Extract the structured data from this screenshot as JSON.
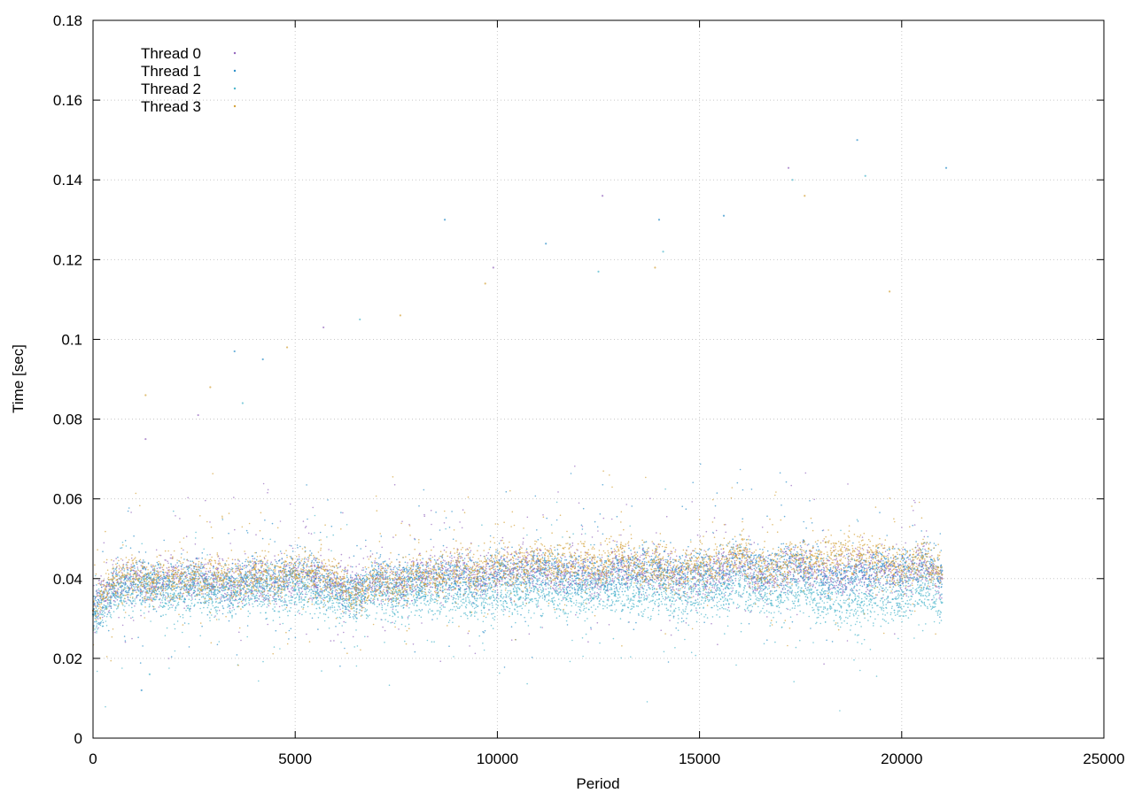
{
  "chart_data": {
    "type": "scatter",
    "title": "",
    "xlabel": "Period",
    "ylabel": "Time [sec]",
    "xlim": [
      0,
      25000
    ],
    "ylim": [
      0,
      0.18
    ],
    "x_ticks": [
      0,
      5000,
      10000,
      15000,
      20000,
      25000
    ],
    "x_tick_labels": [
      "0",
      "5000",
      "10000",
      "15000",
      "20000",
      "25000"
    ],
    "y_ticks": [
      0,
      0.02,
      0.04,
      0.06,
      0.08,
      0.1,
      0.12,
      0.14,
      0.16,
      0.18
    ],
    "y_tick_labels": [
      "0",
      "0.02",
      "0.04",
      "0.06",
      "0.08",
      "0.1",
      "0.12",
      "0.14",
      "0.16",
      "0.18"
    ],
    "grid": true,
    "legend_position": "top-left",
    "series": [
      {
        "name": "Thread 0",
        "color": "#9467bd",
        "x": [
          0,
          500,
          1000,
          1500,
          2000,
          2500,
          3000,
          3500,
          4000,
          4500,
          5000,
          5500,
          6000,
          6500,
          7000,
          7500,
          8000,
          8500,
          9000,
          9500,
          10000,
          10500,
          11000,
          11500,
          12000,
          12500,
          13000,
          13500,
          14000,
          14500,
          15000,
          15500,
          16000,
          16500,
          17000,
          17500,
          18000,
          18500,
          19000,
          19500,
          20000,
          20500,
          21000
        ],
        "y": [
          0.032,
          0.039,
          0.04,
          0.038,
          0.041,
          0.039,
          0.04,
          0.038,
          0.04,
          0.039,
          0.041,
          0.04,
          0.039,
          0.037,
          0.04,
          0.038,
          0.041,
          0.04,
          0.042,
          0.04,
          0.041,
          0.042,
          0.043,
          0.041,
          0.042,
          0.04,
          0.044,
          0.041,
          0.042,
          0.04,
          0.041,
          0.042,
          0.044,
          0.04,
          0.041,
          0.043,
          0.042,
          0.041,
          0.043,
          0.042,
          0.041,
          0.043,
          0.04
        ],
        "outliers_x": [
          1300,
          2600,
          5700,
          9900,
          12600,
          17200
        ],
        "outliers_y": [
          0.075,
          0.081,
          0.103,
          0.118,
          0.136,
          0.143
        ]
      },
      {
        "name": "Thread 1",
        "color": "#2b8fc9",
        "x": [
          0,
          500,
          1000,
          1500,
          2000,
          2500,
          3000,
          3500,
          4000,
          4500,
          5000,
          5500,
          6000,
          6500,
          7000,
          7500,
          8000,
          8500,
          9000,
          9500,
          10000,
          10500,
          11000,
          11500,
          12000,
          12500,
          13000,
          13500,
          14000,
          14500,
          15000,
          15500,
          16000,
          16500,
          17000,
          17500,
          18000,
          18500,
          19000,
          19500,
          20000,
          20500,
          21000
        ],
        "y": [
          0.031,
          0.038,
          0.039,
          0.04,
          0.039,
          0.04,
          0.038,
          0.039,
          0.041,
          0.039,
          0.042,
          0.04,
          0.038,
          0.036,
          0.041,
          0.039,
          0.04,
          0.041,
          0.041,
          0.04,
          0.043,
          0.041,
          0.042,
          0.043,
          0.041,
          0.041,
          0.042,
          0.043,
          0.042,
          0.041,
          0.043,
          0.041,
          0.045,
          0.042,
          0.043,
          0.044,
          0.041,
          0.04,
          0.042,
          0.043,
          0.042,
          0.044,
          0.042
        ],
        "outliers_x": [
          1200,
          3500,
          4200,
          8700,
          11200,
          14000,
          15600,
          18900,
          21100
        ],
        "outliers_y": [
          0.012,
          0.097,
          0.095,
          0.13,
          0.124,
          0.13,
          0.131,
          0.15,
          0.143
        ]
      },
      {
        "name": "Thread 2",
        "color": "#4db6cc",
        "x": [
          0,
          500,
          1000,
          1500,
          2000,
          2500,
          3000,
          3500,
          4000,
          4500,
          5000,
          5500,
          6000,
          6500,
          7000,
          7500,
          8000,
          8500,
          9000,
          9500,
          10000,
          10500,
          11000,
          11500,
          12000,
          12500,
          13000,
          13500,
          14000,
          14500,
          15000,
          15500,
          16000,
          16500,
          17000,
          17500,
          18000,
          18500,
          19000,
          19500,
          20000,
          20500,
          21000
        ],
        "y": [
          0.031,
          0.036,
          0.037,
          0.037,
          0.036,
          0.037,
          0.036,
          0.036,
          0.037,
          0.036,
          0.037,
          0.036,
          0.035,
          0.034,
          0.036,
          0.035,
          0.036,
          0.036,
          0.036,
          0.035,
          0.036,
          0.036,
          0.037,
          0.036,
          0.036,
          0.036,
          0.036,
          0.036,
          0.036,
          0.035,
          0.036,
          0.036,
          0.038,
          0.036,
          0.036,
          0.037,
          0.035,
          0.033,
          0.034,
          0.035,
          0.035,
          0.037,
          0.034
        ],
        "outliers_x": [
          1400,
          3700,
          6600,
          12500,
          14100,
          17300,
          19100
        ],
        "outliers_y": [
          0.016,
          0.084,
          0.105,
          0.117,
          0.122,
          0.14,
          0.141
        ]
      },
      {
        "name": "Thread 3",
        "color": "#d4a33b",
        "x": [
          0,
          500,
          1000,
          1500,
          2000,
          2500,
          3000,
          3500,
          4000,
          4500,
          5000,
          5500,
          6000,
          6500,
          7000,
          7500,
          8000,
          8500,
          9000,
          9500,
          10000,
          10500,
          11000,
          11500,
          12000,
          12500,
          13000,
          13500,
          14000,
          14500,
          15000,
          15500,
          16000,
          16500,
          17000,
          17500,
          18000,
          18500,
          19000,
          19500,
          20000,
          20500,
          21000
        ],
        "y": [
          0.032,
          0.04,
          0.041,
          0.039,
          0.041,
          0.04,
          0.041,
          0.039,
          0.041,
          0.04,
          0.042,
          0.041,
          0.04,
          0.036,
          0.04,
          0.039,
          0.042,
          0.04,
          0.043,
          0.041,
          0.044,
          0.043,
          0.045,
          0.043,
          0.044,
          0.042,
          0.047,
          0.043,
          0.044,
          0.042,
          0.043,
          0.043,
          0.047,
          0.042,
          0.043,
          0.045,
          0.045,
          0.046,
          0.046,
          0.045,
          0.042,
          0.045,
          0.041
        ],
        "outliers_x": [
          1300,
          2900,
          4800,
          7600,
          9700,
          13900,
          17600,
          19700
        ],
        "outliers_y": [
          0.086,
          0.088,
          0.098,
          0.106,
          0.114,
          0.118,
          0.136,
          0.112
        ]
      }
    ]
  }
}
